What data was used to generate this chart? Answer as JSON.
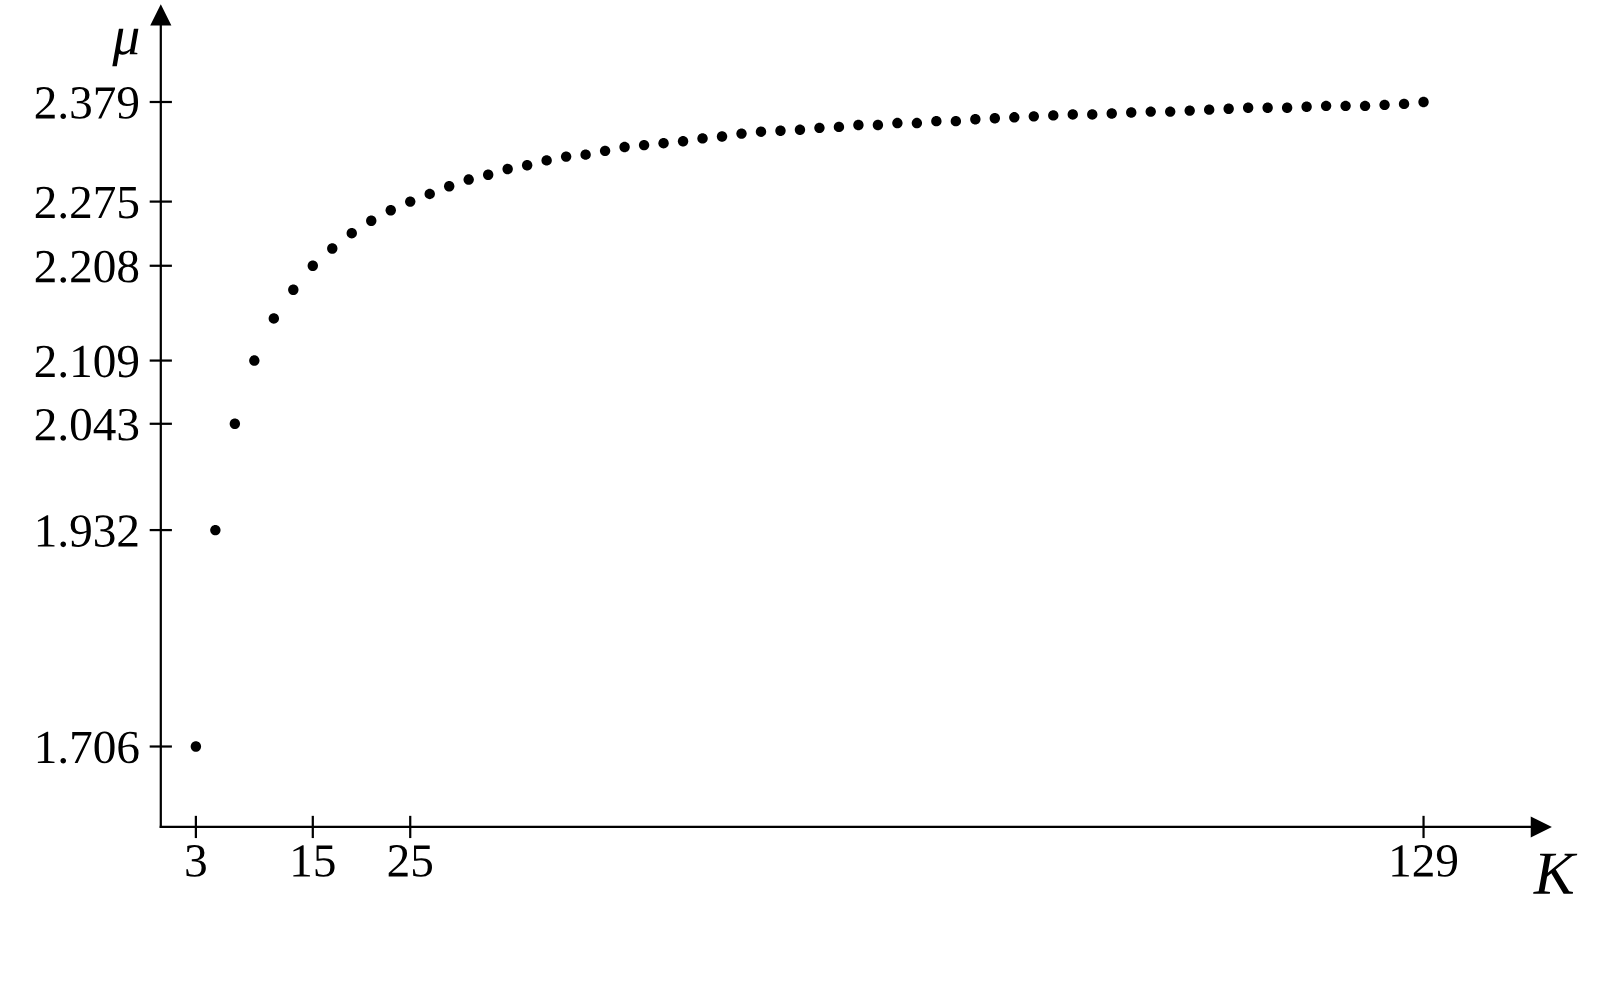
{
  "chart_data": {
    "type": "scatter",
    "xlabel": "K",
    "ylabel": "μ",
    "x": [
      3,
      5,
      7,
      9,
      11,
      13,
      15,
      17,
      19,
      21,
      23,
      25,
      27,
      29,
      31,
      33,
      35,
      37,
      39,
      41,
      43,
      45,
      47,
      49,
      51,
      53,
      55,
      57,
      59,
      61,
      63,
      65,
      67,
      69,
      71,
      73,
      75,
      77,
      79,
      81,
      83,
      85,
      87,
      89,
      91,
      93,
      95,
      97,
      99,
      101,
      103,
      105,
      107,
      109,
      111,
      113,
      115,
      117,
      119,
      121,
      123,
      125,
      127,
      129
    ],
    "series": [
      {
        "color": "#000000",
        "values": [
          1.706,
          1.932,
          2.043,
          2.109,
          2.153,
          2.183,
          2.208,
          2.226,
          2.242,
          2.255,
          2.266,
          2.275,
          2.283,
          2.291,
          2.298,
          2.303,
          2.309,
          2.313,
          2.318,
          2.322,
          2.324,
          2.328,
          2.332,
          2.334,
          2.336,
          2.338,
          2.341,
          2.343,
          2.346,
          2.348,
          2.349,
          2.35,
          2.352,
          2.353,
          2.355,
          2.355,
          2.357,
          2.357,
          2.359,
          2.359,
          2.361,
          2.362,
          2.363,
          2.364,
          2.365,
          2.366,
          2.366,
          2.367,
          2.368,
          2.369,
          2.369,
          2.37,
          2.371,
          2.372,
          2.373,
          2.373,
          2.373,
          2.374,
          2.375,
          2.375,
          2.375,
          2.376,
          2.377,
          2.379
        ]
      }
    ],
    "marker": "circle",
    "xlim": [
      -0.6,
      141
    ],
    "xticks": [
      3,
      15,
      25,
      129
    ],
    "ylim": [
      1.622,
      2.469
    ],
    "yticks": [
      1.706,
      1.932,
      2.043,
      2.109,
      2.208,
      2.275,
      2.379
    ],
    "grid": false,
    "legend": false
  }
}
